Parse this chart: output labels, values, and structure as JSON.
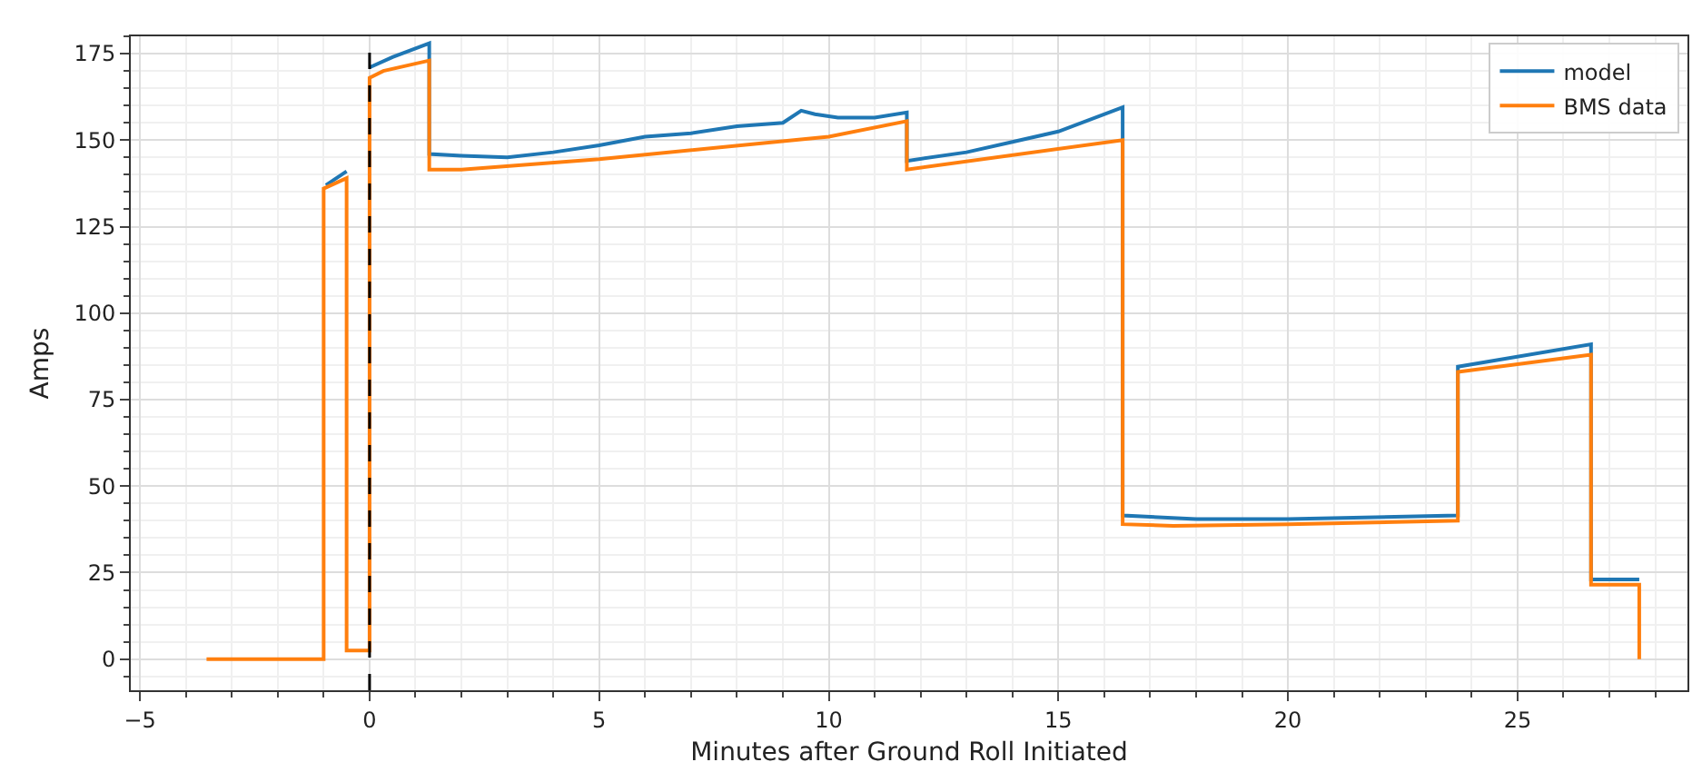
{
  "chart_data": {
    "type": "line",
    "xlabel": "Minutes after Ground Roll Initiated",
    "ylabel": "Amps",
    "xlim": [
      -5.2,
      28.7
    ],
    "ylim": [
      -9,
      180
    ],
    "xticks": [
      {
        "value": -5,
        "label": "−5"
      },
      0,
      5,
      10,
      15,
      20,
      25
    ],
    "yticks": [
      0,
      25,
      50,
      75,
      100,
      125,
      150,
      175
    ],
    "grid": true,
    "legend": "top right",
    "line_style": "solid",
    "marker": "none",
    "ref_lines": [
      {
        "axis": "x",
        "value": 0,
        "color": "#000000",
        "line_style": "dashed"
      }
    ],
    "series": [
      {
        "name": "model",
        "color": "#1f77b4",
        "x": [
          -0.95,
          -0.5,
          null,
          0,
          0.5,
          1.3,
          1.3,
          2,
          3,
          4,
          5,
          6,
          7,
          8,
          9,
          9.4,
          9.7,
          10.2,
          11,
          11.7,
          11.7,
          13,
          14,
          15,
          16.4,
          16.4,
          18,
          20,
          23.7,
          23.7,
          26.6,
          26.6,
          27.65
        ],
        "values": [
          137,
          141,
          null,
          171,
          174,
          178,
          146,
          145.5,
          145,
          146.5,
          148.5,
          151,
          152,
          154,
          155,
          158.5,
          157.5,
          156.5,
          156.5,
          158,
          144,
          146.5,
          149.5,
          152.5,
          159.5,
          41.5,
          40.5,
          40.5,
          41.5,
          84.5,
          91,
          23,
          23
        ]
      },
      {
        "name": "BMS data",
        "color": "#ff7f0e",
        "x": [
          -3.55,
          -1.0,
          -1.0,
          -0.5,
          -0.5,
          0,
          0,
          0.3,
          1.3,
          1.3,
          2,
          5,
          10,
          11.7,
          11.7,
          16.4,
          16.4,
          17.5,
          20,
          23.7,
          23.7,
          26.6,
          26.6,
          27.65,
          27.65
        ],
        "values": [
          0,
          0,
          136,
          139,
          2.5,
          2.5,
          168,
          170,
          173,
          141.5,
          141.5,
          144.5,
          151,
          155.5,
          141.5,
          150,
          39,
          38.5,
          39,
          40,
          83,
          88,
          21.5,
          21.5,
          0
        ]
      }
    ]
  }
}
